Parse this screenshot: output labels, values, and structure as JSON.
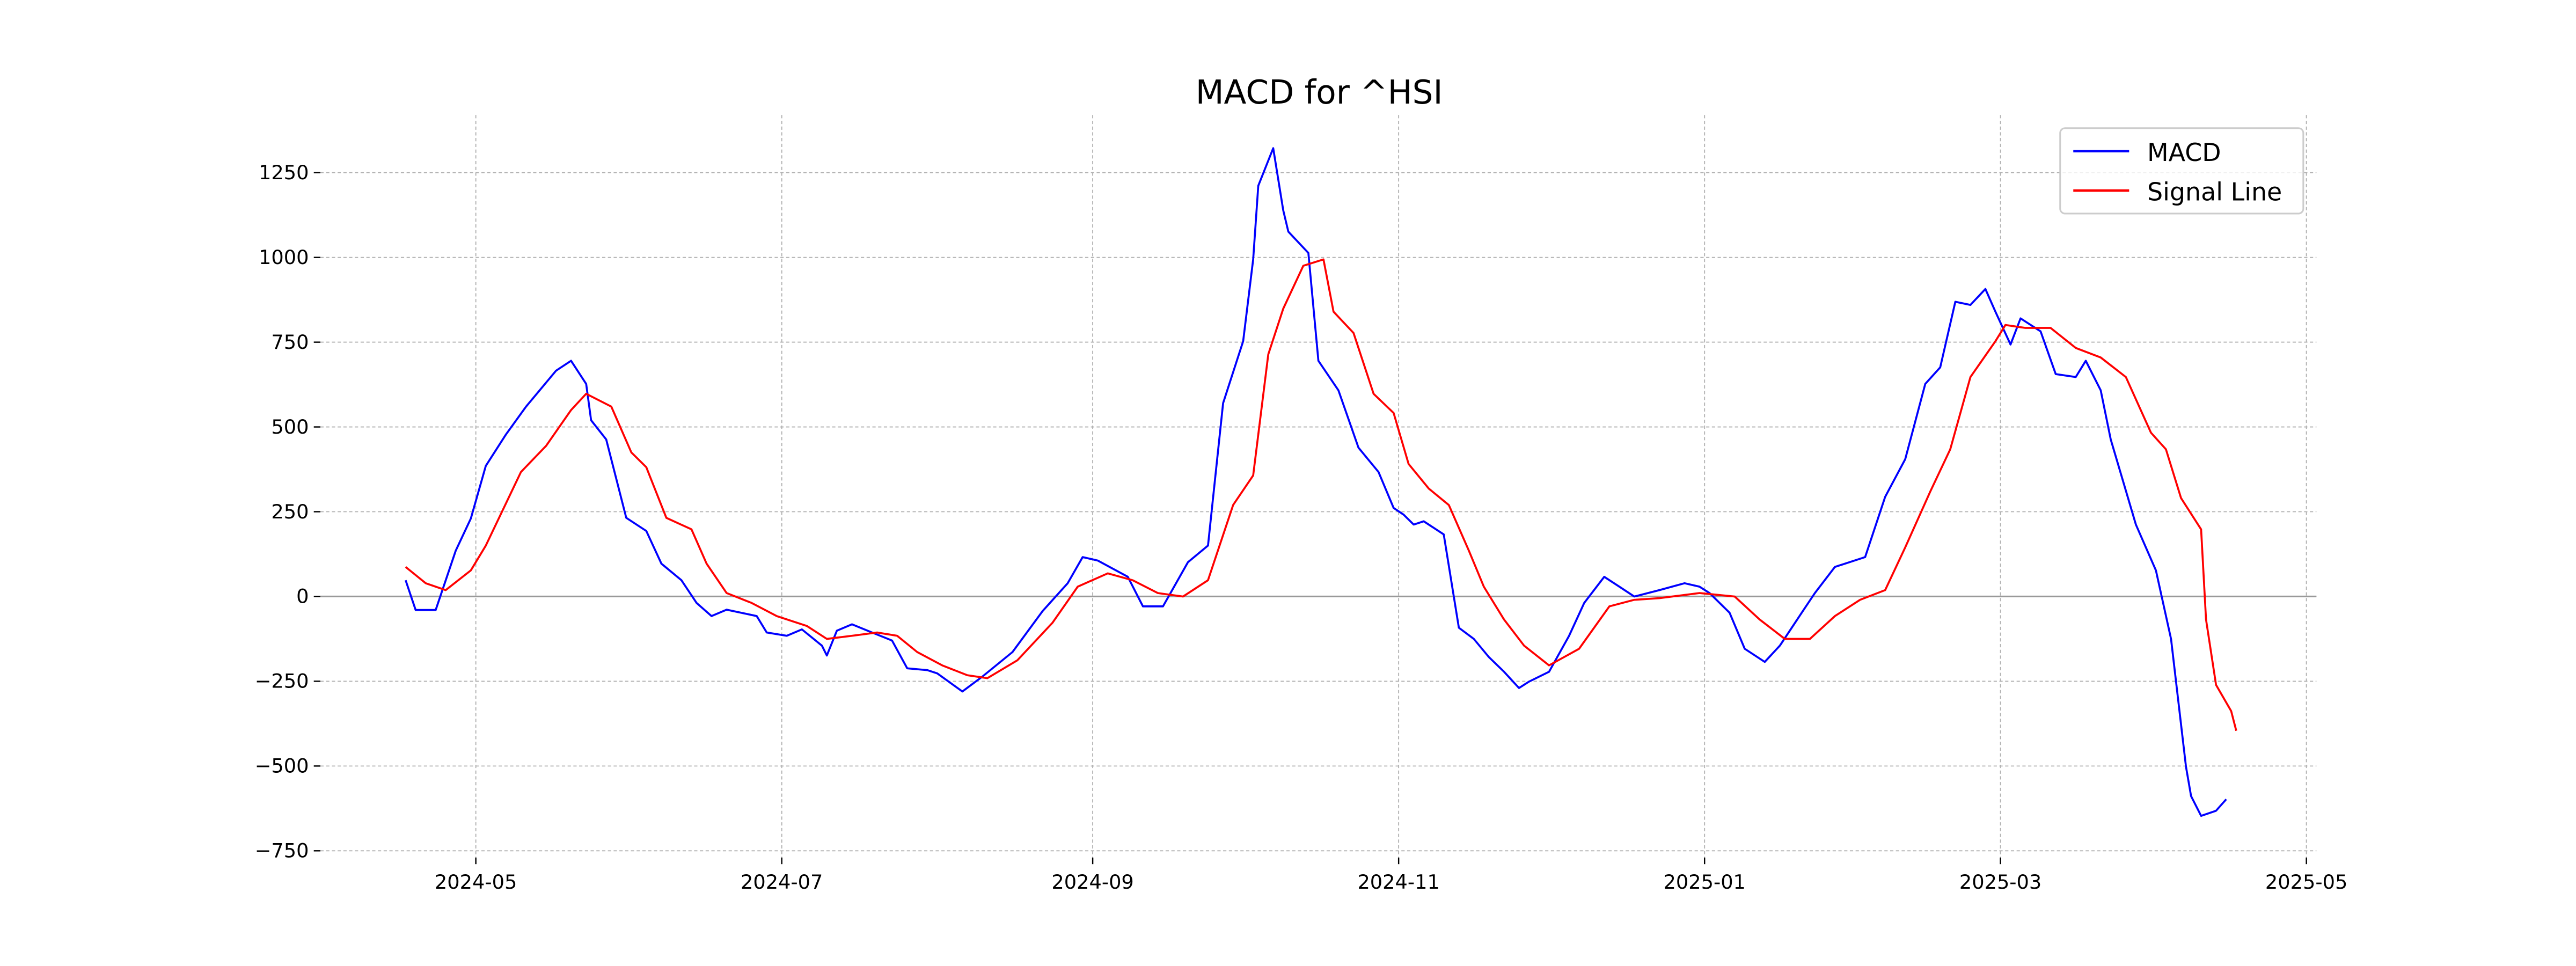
{
  "chart_data": {
    "type": "line",
    "title": "MACD for ^HSI",
    "xlabel": "",
    "ylabel": "",
    "ylim": [
      -770,
      1420
    ],
    "xlim": [
      "2024-03-31",
      "2025-05-03"
    ],
    "grid": true,
    "legend_position": "top-right",
    "yticks": [
      -750,
      -500,
      -250,
      0,
      250,
      500,
      750,
      1000,
      1250
    ],
    "ytick_labels": [
      "−750",
      "−500",
      "−250",
      "0",
      "250",
      "500",
      "750",
      "1000",
      "1250"
    ],
    "xticks": [
      "2024-05-01",
      "2024-07-01",
      "2024-09-01",
      "2024-11-01",
      "2025-01-01",
      "2025-03-01",
      "2025-05-01"
    ],
    "xtick_labels": [
      "2024-05",
      "2024-07",
      "2024-09",
      "2024-11",
      "2025-01",
      "2025-03",
      "2025-05"
    ],
    "colors": {
      "macd": "#0000ff",
      "signal": "#ff0000",
      "zero_line": "#999999",
      "grid": "#b0b0b0"
    },
    "series": [
      {
        "name": "MACD",
        "color": "#0000ff",
        "points": [
          [
            "2024-04-17",
            48
          ],
          [
            "2024-04-19",
            -40
          ],
          [
            "2024-04-23",
            -40
          ],
          [
            "2024-04-27",
            135
          ],
          [
            "2024-04-30",
            230
          ],
          [
            "2024-05-03",
            385
          ],
          [
            "2024-05-07",
            478
          ],
          [
            "2024-05-11",
            560
          ],
          [
            "2024-05-17",
            666
          ],
          [
            "2024-05-20",
            695
          ],
          [
            "2024-05-23",
            627
          ],
          [
            "2024-05-24",
            520
          ],
          [
            "2024-05-27",
            463
          ],
          [
            "2024-05-31",
            232
          ],
          [
            "2024-06-04",
            193
          ],
          [
            "2024-06-07",
            97
          ],
          [
            "2024-06-11",
            48
          ],
          [
            "2024-06-14",
            -19
          ],
          [
            "2024-06-17",
            -58
          ],
          [
            "2024-06-20",
            -39
          ],
          [
            "2024-06-26",
            -58
          ],
          [
            "2024-06-28",
            -106
          ],
          [
            "2024-07-02",
            -116
          ],
          [
            "2024-07-05",
            -97
          ],
          [
            "2024-07-09",
            -145
          ],
          [
            "2024-07-10",
            -174
          ],
          [
            "2024-07-12",
            -101
          ],
          [
            "2024-07-15",
            -82
          ],
          [
            "2024-07-19",
            -106
          ],
          [
            "2024-07-23",
            -130
          ],
          [
            "2024-07-26",
            -212
          ],
          [
            "2024-07-30",
            -217
          ],
          [
            "2024-08-01",
            -227
          ],
          [
            "2024-08-06",
            -280
          ],
          [
            "2024-08-10",
            -236
          ],
          [
            "2024-08-16",
            -164
          ],
          [
            "2024-08-22",
            -43
          ],
          [
            "2024-08-27",
            39
          ],
          [
            "2024-08-30",
            116
          ],
          [
            "2024-09-02",
            106
          ],
          [
            "2024-09-08",
            58
          ],
          [
            "2024-09-11",
            -29
          ],
          [
            "2024-09-15",
            -29
          ],
          [
            "2024-09-20",
            101
          ],
          [
            "2024-09-24",
            150
          ],
          [
            "2024-09-27",
            570
          ],
          [
            "2024-10-01",
            753
          ],
          [
            "2024-10-03",
            994
          ],
          [
            "2024-10-04",
            1211
          ],
          [
            "2024-10-07",
            1322
          ],
          [
            "2024-10-09",
            1139
          ],
          [
            "2024-10-10",
            1076
          ],
          [
            "2024-10-14",
            1013
          ],
          [
            "2024-10-16",
            695
          ],
          [
            "2024-10-20",
            608
          ],
          [
            "2024-10-24",
            439
          ],
          [
            "2024-10-28",
            367
          ],
          [
            "2024-10-31",
            261
          ],
          [
            "2024-11-02",
            241
          ],
          [
            "2024-11-04",
            212
          ],
          [
            "2024-11-06",
            222
          ],
          [
            "2024-11-10",
            183
          ],
          [
            "2024-11-13",
            -92
          ],
          [
            "2024-11-16",
            -125
          ],
          [
            "2024-11-19",
            -179
          ],
          [
            "2024-11-22",
            -222
          ],
          [
            "2024-11-25",
            -270
          ],
          [
            "2024-11-27",
            -251
          ],
          [
            "2024-12-01",
            -222
          ],
          [
            "2024-12-05",
            -116
          ],
          [
            "2024-12-08",
            -19
          ],
          [
            "2024-12-12",
            58
          ],
          [
            "2024-12-15",
            29
          ],
          [
            "2024-12-18",
            0
          ],
          [
            "2024-12-23",
            19
          ],
          [
            "2024-12-28",
            39
          ],
          [
            "2024-12-31",
            29
          ],
          [
            "2025-01-02",
            10
          ],
          [
            "2025-01-06",
            -48
          ],
          [
            "2025-01-09",
            -154
          ],
          [
            "2025-01-13",
            -193
          ],
          [
            "2025-01-16",
            -145
          ],
          [
            "2025-01-21",
            -34
          ],
          [
            "2025-01-23",
            10
          ],
          [
            "2025-01-27",
            87
          ],
          [
            "2025-02-02",
            116
          ],
          [
            "2025-02-06",
            294
          ],
          [
            "2025-02-10",
            405
          ],
          [
            "2025-02-14",
            627
          ],
          [
            "2025-02-17",
            676
          ],
          [
            "2025-02-20",
            869
          ],
          [
            "2025-02-23",
            860
          ],
          [
            "2025-02-26",
            907
          ],
          [
            "2025-02-28",
            840
          ],
          [
            "2025-03-03",
            743
          ],
          [
            "2025-03-05",
            820
          ],
          [
            "2025-03-09",
            782
          ],
          [
            "2025-03-12",
            656
          ],
          [
            "2025-03-16",
            647
          ],
          [
            "2025-03-18",
            695
          ],
          [
            "2025-03-21",
            608
          ],
          [
            "2025-03-23",
            463
          ],
          [
            "2025-03-28",
            212
          ],
          [
            "2025-04-01",
            77
          ],
          [
            "2025-04-04",
            -125
          ],
          [
            "2025-04-07",
            -502
          ],
          [
            "2025-04-08",
            -589
          ],
          [
            "2025-04-10",
            -647
          ],
          [
            "2025-04-13",
            -632
          ],
          [
            "2025-04-15",
            -598
          ]
        ]
      },
      {
        "name": "Signal Line",
        "color": "#ff0000",
        "points": [
          [
            "2024-04-17",
            87
          ],
          [
            "2024-04-21",
            39
          ],
          [
            "2024-04-25",
            19
          ],
          [
            "2024-04-30",
            77
          ],
          [
            "2024-05-03",
            150
          ],
          [
            "2024-05-10",
            367
          ],
          [
            "2024-05-15",
            444
          ],
          [
            "2024-05-20",
            550
          ],
          [
            "2024-05-23",
            598
          ],
          [
            "2024-05-28",
            560
          ],
          [
            "2024-06-01",
            425
          ],
          [
            "2024-06-04",
            381
          ],
          [
            "2024-06-08",
            232
          ],
          [
            "2024-06-13",
            198
          ],
          [
            "2024-06-16",
            97
          ],
          [
            "2024-06-20",
            10
          ],
          [
            "2024-06-25",
            -19
          ],
          [
            "2024-06-30",
            -58
          ],
          [
            "2024-07-06",
            -87
          ],
          [
            "2024-07-10",
            -125
          ],
          [
            "2024-07-15",
            -116
          ],
          [
            "2024-07-20",
            -106
          ],
          [
            "2024-07-24",
            -116
          ],
          [
            "2024-07-28",
            -164
          ],
          [
            "2024-08-02",
            -203
          ],
          [
            "2024-08-07",
            -232
          ],
          [
            "2024-08-11",
            -241
          ],
          [
            "2024-08-17",
            -188
          ],
          [
            "2024-08-24",
            -77
          ],
          [
            "2024-08-29",
            29
          ],
          [
            "2024-09-04",
            68
          ],
          [
            "2024-09-09",
            48
          ],
          [
            "2024-09-14",
            10
          ],
          [
            "2024-09-19",
            0
          ],
          [
            "2024-09-24",
            48
          ],
          [
            "2024-09-29",
            270
          ],
          [
            "2024-10-03",
            357
          ],
          [
            "2024-10-06",
            714
          ],
          [
            "2024-10-09",
            849
          ],
          [
            "2024-10-13",
            975
          ],
          [
            "2024-10-17",
            994
          ],
          [
            "2024-10-19",
            840
          ],
          [
            "2024-10-23",
            777
          ],
          [
            "2024-10-27",
            598
          ],
          [
            "2024-10-31",
            541
          ],
          [
            "2024-11-03",
            391
          ],
          [
            "2024-11-07",
            318
          ],
          [
            "2024-11-11",
            270
          ],
          [
            "2024-11-15",
            135
          ],
          [
            "2024-11-18",
            29
          ],
          [
            "2024-11-22",
            -68
          ],
          [
            "2024-11-26",
            -145
          ],
          [
            "2024-12-01",
            -203
          ],
          [
            "2024-12-07",
            -154
          ],
          [
            "2024-12-13",
            -29
          ],
          [
            "2024-12-18",
            -10
          ],
          [
            "2024-12-23",
            -5
          ],
          [
            "2024-12-31",
            10
          ],
          [
            "2025-01-07",
            0
          ],
          [
            "2025-01-12",
            -68
          ],
          [
            "2025-01-17",
            -125
          ],
          [
            "2025-01-22",
            -125
          ],
          [
            "2025-01-27",
            -58
          ],
          [
            "2025-02-01",
            -10
          ],
          [
            "2025-02-06",
            19
          ],
          [
            "2025-02-10",
            145
          ],
          [
            "2025-02-15",
            309
          ],
          [
            "2025-02-19",
            434
          ],
          [
            "2025-02-23",
            647
          ],
          [
            "2025-02-28",
            753
          ],
          [
            "2025-03-02",
            801
          ],
          [
            "2025-03-06",
            792
          ],
          [
            "2025-03-11",
            792
          ],
          [
            "2025-03-16",
            733
          ],
          [
            "2025-03-21",
            705
          ],
          [
            "2025-03-26",
            647
          ],
          [
            "2025-03-31",
            483
          ],
          [
            "2025-04-03",
            434
          ],
          [
            "2025-04-06",
            290
          ],
          [
            "2025-04-10",
            198
          ],
          [
            "2025-04-11",
            -68
          ],
          [
            "2025-04-13",
            -261
          ],
          [
            "2025-04-16",
            -338
          ],
          [
            "2025-04-17",
            -396
          ]
        ]
      }
    ]
  }
}
